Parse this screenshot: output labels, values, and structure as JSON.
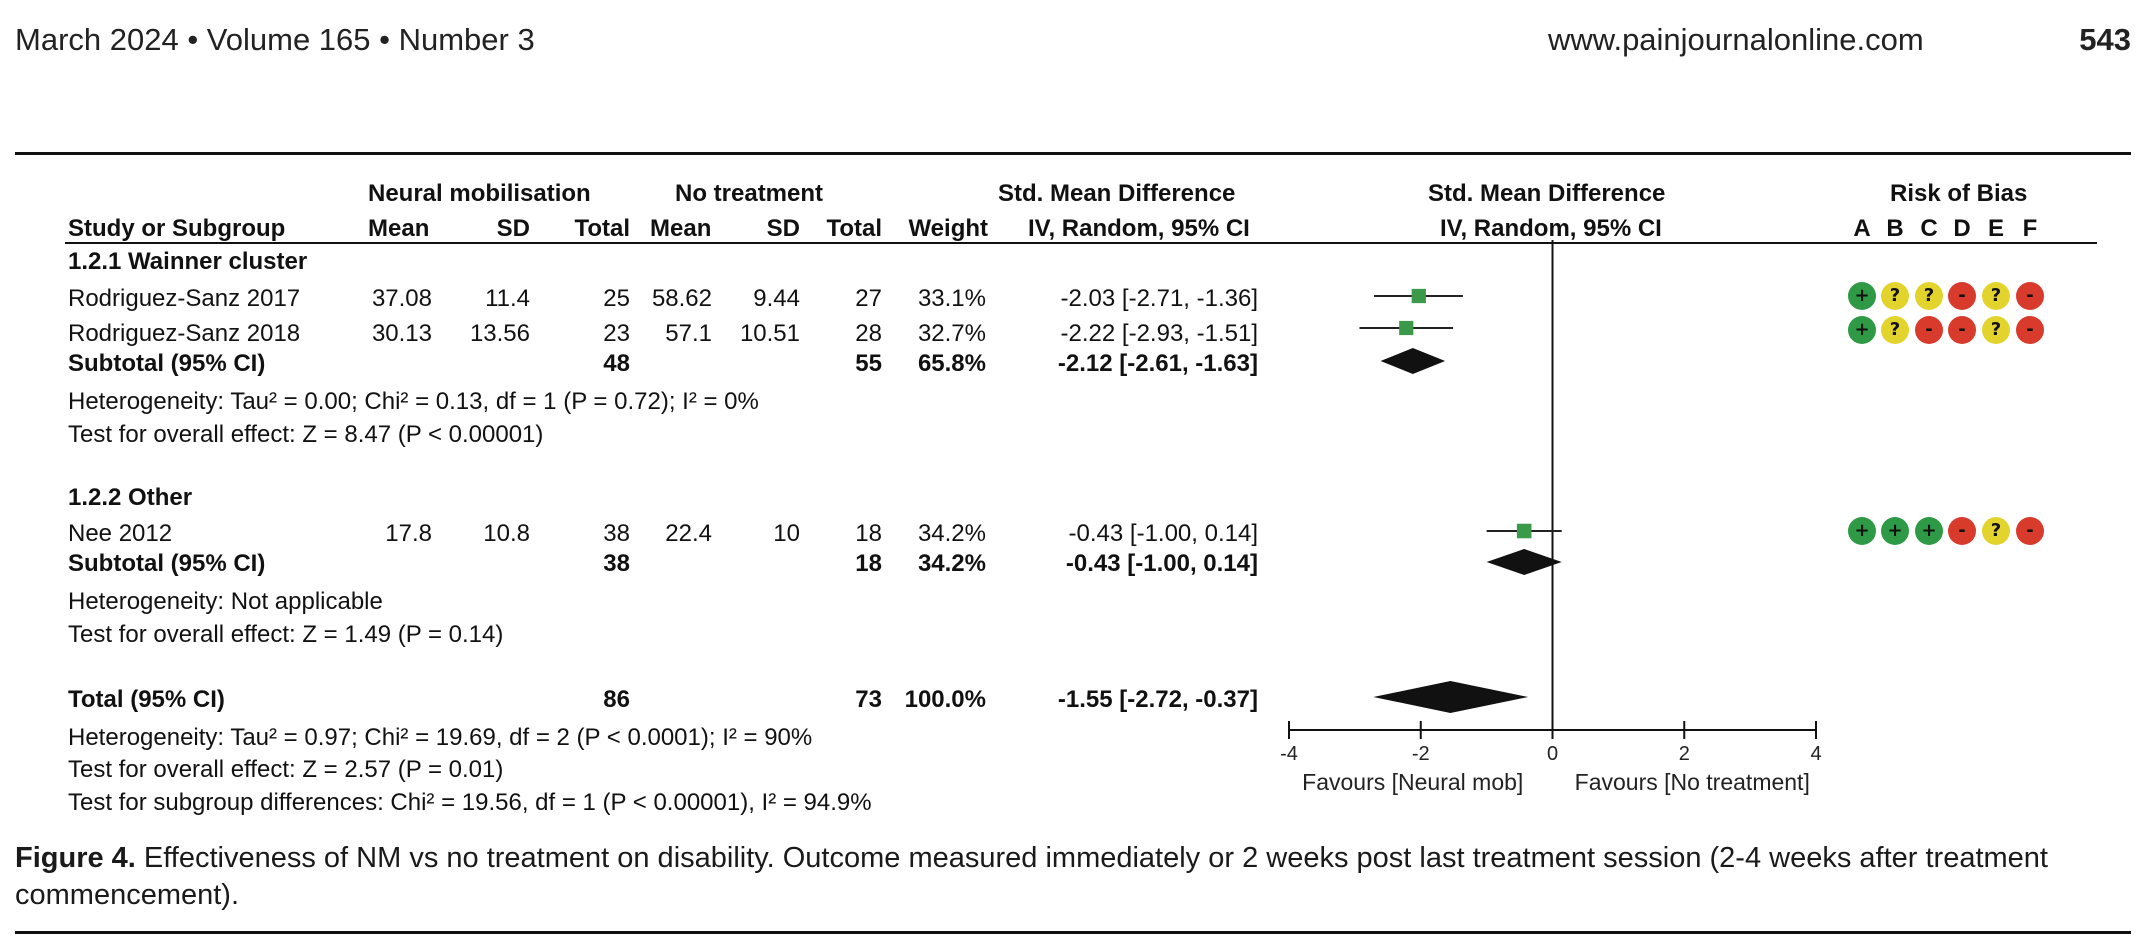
{
  "header": {
    "left": "March 2024 • Volume 165 • Number 3",
    "url": "www.painjournalonline.com",
    "page_number": "543"
  },
  "columns": {
    "group1": "Neural mobilisation",
    "group2": "No treatment",
    "study": "Study or Subgroup",
    "mean": "Mean",
    "sd": "SD",
    "total": "Total",
    "weight": "Weight",
    "smd_title": "Std. Mean Difference",
    "smd_method": "IV, Random, 95% CI",
    "rob_title": "Risk of Bias",
    "rob_letters": [
      "A",
      "B",
      "C",
      "D",
      "E",
      "F"
    ]
  },
  "subgroups": [
    {
      "title": "1.2.1 Wainner cluster",
      "studies": [
        {
          "name": "Rodriguez-Sanz 2017",
          "mean1": "37.08",
          "sd1": "11.4",
          "n1": "25",
          "mean2": "58.62",
          "sd2": "9.44",
          "n2": "27",
          "weight": "33.1%",
          "ci_text": "-2.03 [-2.71, -1.36]",
          "rob": [
            "+",
            "?",
            "?",
            "-",
            "?",
            "-"
          ]
        },
        {
          "name": "Rodriguez-Sanz 2018",
          "mean1": "30.13",
          "sd1": "13.56",
          "n1": "23",
          "mean2": "57.1",
          "sd2": "10.51",
          "n2": "28",
          "weight": "32.7%",
          "ci_text": "-2.22 [-2.93, -1.51]",
          "rob": [
            "+",
            "?",
            "-",
            "-",
            "?",
            "-"
          ]
        }
      ],
      "subtotal": {
        "label": "Subtotal (95% CI)",
        "n1": "48",
        "n2": "55",
        "weight": "65.8%",
        "ci_text": "-2.12 [-2.61, -1.63]"
      },
      "heterogeneity": "Heterogeneity: Tau² = 0.00; Chi² = 0.13, df = 1 (P = 0.72); I² = 0%",
      "overall_effect": "Test for overall effect: Z = 8.47 (P < 0.00001)"
    },
    {
      "title": "1.2.2 Other",
      "studies": [
        {
          "name": "Nee 2012",
          "mean1": "17.8",
          "sd1": "10.8",
          "n1": "38",
          "mean2": "22.4",
          "sd2": "10",
          "n2": "18",
          "weight": "34.2%",
          "ci_text": "-0.43 [-1.00, 0.14]",
          "rob": [
            "+",
            "+",
            "+",
            "-",
            "?",
            "-"
          ]
        }
      ],
      "subtotal": {
        "label": "Subtotal (95% CI)",
        "n1": "38",
        "n2": "18",
        "weight": "34.2%",
        "ci_text": "-0.43 [-1.00, 0.14]"
      },
      "heterogeneity": "Heterogeneity: Not applicable",
      "overall_effect": "Test for overall effect: Z = 1.49 (P = 0.14)"
    }
  ],
  "total": {
    "label": "Total (95% CI)",
    "n1": "86",
    "n2": "73",
    "weight": "100.0%",
    "ci_text": "-1.55 [-2.72, -0.37]",
    "heterogeneity": "Heterogeneity: Tau² = 0.97; Chi² = 19.69, df = 2 (P < 0.0001); I² = 90%",
    "overall_effect": "Test for overall effect: Z = 2.57 (P = 0.01)",
    "subgroup_diff": "Test for subgroup differences: Chi² = 19.56, df = 1 (P < 0.00001), I² = 94.9%"
  },
  "chart_data": {
    "type": "forest",
    "title": "Std. Mean Difference",
    "method": "IV, Random, 95% CI",
    "xlim": [
      -4,
      4
    ],
    "ticks": [
      "-4",
      "-2",
      "0",
      "2",
      "4"
    ],
    "tick_values": [
      -4,
      -2,
      0,
      2,
      4
    ],
    "favours_left": "Favours [Neural mob]",
    "favours_right": "Favours [No treatment]",
    "studies": [
      {
        "name": "Rodriguez-Sanz 2017",
        "est": -2.03,
        "lo": -2.71,
        "hi": -1.36,
        "weight": 33.1
      },
      {
        "name": "Rodriguez-Sanz 2018",
        "est": -2.22,
        "lo": -2.93,
        "hi": -1.51,
        "weight": 32.7
      },
      {
        "name": "Nee 2012",
        "est": -0.43,
        "lo": -1.0,
        "hi": 0.14,
        "weight": 34.2
      }
    ],
    "diamonds": [
      {
        "name": "Subtotal 1.2.1",
        "est": -2.12,
        "lo": -2.61,
        "hi": -1.63
      },
      {
        "name": "Subtotal 1.2.2",
        "est": -0.43,
        "lo": -1.0,
        "hi": 0.14
      },
      {
        "name": "Total",
        "est": -1.55,
        "lo": -2.72,
        "hi": -0.37
      }
    ]
  },
  "rob_colors": {
    "+": "#2e9a46",
    "?": "#e3d42d",
    "-": "#d83a2c"
  },
  "marker_color": "#3a9a4a",
  "caption": {
    "label": "Figure 4.",
    "text": " Effectiveness of NM vs no treatment on disability. Outcome measured immediately or 2 weeks post last treatment session (2-4 weeks after treatment commencement)."
  }
}
